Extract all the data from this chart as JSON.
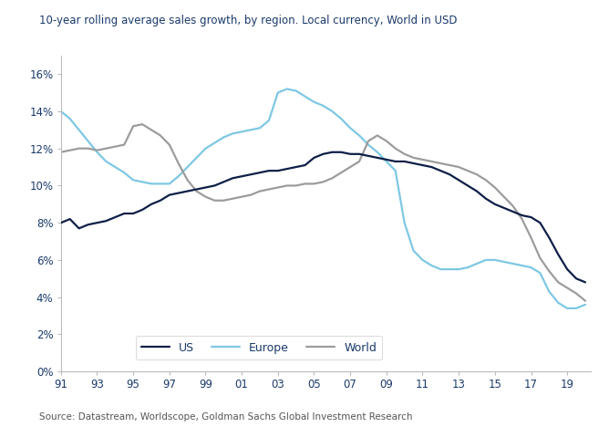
{
  "title": "10-year rolling average sales growth, by region. Local currency, World in USD",
  "source": "Source: Datastream, Worldscope, Goldman Sachs Global Investment Research",
  "x_tick_labels": [
    "91",
    "93",
    "95",
    "97",
    "99",
    "01",
    "03",
    "05",
    "07",
    "09",
    "11",
    "13",
    "15",
    "17",
    "19"
  ],
  "ylim": [
    0,
    0.17
  ],
  "yticks": [
    0.0,
    0.02,
    0.04,
    0.06,
    0.08,
    0.1,
    0.12,
    0.14,
    0.16
  ],
  "us_color": "#0d1f47",
  "europe_color": "#7ec8e3",
  "world_color": "#9c9c9c",
  "us_x": [
    1991,
    1991.5,
    1992,
    1992.5,
    1993,
    1993.5,
    1994,
    1994.5,
    1995,
    1995.5,
    1996,
    1996.5,
    1997,
    1997.5,
    1998,
    1998.5,
    1999,
    1999.5,
    2000,
    2000.5,
    2001,
    2001.5,
    2002,
    2002.5,
    2003,
    2003.5,
    2004,
    2004.5,
    2005,
    2005.5,
    2006,
    2006.5,
    2007,
    2007.5,
    2008,
    2008.5,
    2009,
    2009.5,
    2010,
    2010.5,
    2011,
    2011.5,
    2012,
    2012.5,
    2013,
    2013.5,
    2014,
    2014.5,
    2015,
    2015.5,
    2016,
    2016.5,
    2017,
    2017.5,
    2018,
    2018.5,
    2019,
    2019.5,
    2020
  ],
  "us_y": [
    0.08,
    0.082,
    0.077,
    0.079,
    0.08,
    0.081,
    0.083,
    0.085,
    0.085,
    0.087,
    0.09,
    0.092,
    0.095,
    0.096,
    0.097,
    0.098,
    0.099,
    0.1,
    0.102,
    0.104,
    0.105,
    0.106,
    0.107,
    0.108,
    0.108,
    0.109,
    0.11,
    0.111,
    0.115,
    0.117,
    0.118,
    0.118,
    0.117,
    0.117,
    0.116,
    0.115,
    0.114,
    0.113,
    0.113,
    0.112,
    0.111,
    0.11,
    0.108,
    0.106,
    0.103,
    0.1,
    0.097,
    0.093,
    0.09,
    0.088,
    0.086,
    0.084,
    0.083,
    0.08,
    0.072,
    0.063,
    0.055,
    0.05,
    0.048
  ],
  "europe_x": [
    1991,
    1991.5,
    1992,
    1992.5,
    1993,
    1993.5,
    1994,
    1994.5,
    1995,
    1995.5,
    1996,
    1996.5,
    1997,
    1997.5,
    1998,
    1998.5,
    1999,
    1999.5,
    2000,
    2000.5,
    2001,
    2001.5,
    2002,
    2002.5,
    2003,
    2003.5,
    2004,
    2004.5,
    2005,
    2005.5,
    2006,
    2006.5,
    2007,
    2007.5,
    2008,
    2008.5,
    2009,
    2009.5,
    2010,
    2010.5,
    2011,
    2011.5,
    2012,
    2012.5,
    2013,
    2013.5,
    2014,
    2014.5,
    2015,
    2015.5,
    2016,
    2016.5,
    2017,
    2017.5,
    2018,
    2018.5,
    2019,
    2019.5,
    2020
  ],
  "europe_y": [
    0.14,
    0.136,
    0.13,
    0.124,
    0.118,
    0.113,
    0.11,
    0.107,
    0.103,
    0.102,
    0.101,
    0.101,
    0.101,
    0.105,
    0.11,
    0.115,
    0.12,
    0.123,
    0.126,
    0.128,
    0.129,
    0.13,
    0.131,
    0.135,
    0.15,
    0.152,
    0.151,
    0.148,
    0.145,
    0.143,
    0.14,
    0.136,
    0.131,
    0.127,
    0.122,
    0.118,
    0.113,
    0.108,
    0.08,
    0.065,
    0.06,
    0.057,
    0.055,
    0.055,
    0.055,
    0.056,
    0.058,
    0.06,
    0.06,
    0.059,
    0.058,
    0.057,
    0.056,
    0.053,
    0.043,
    0.037,
    0.034,
    0.034,
    0.036
  ],
  "world_x": [
    1991,
    1991.5,
    1992,
    1992.5,
    1993,
    1993.5,
    1994,
    1994.5,
    1995,
    1995.5,
    1996,
    1996.5,
    1997,
    1997.5,
    1998,
    1998.5,
    1999,
    1999.5,
    2000,
    2000.5,
    2001,
    2001.5,
    2002,
    2002.5,
    2003,
    2003.5,
    2004,
    2004.5,
    2005,
    2005.5,
    2006,
    2006.5,
    2007,
    2007.5,
    2008,
    2008.5,
    2009,
    2009.5,
    2010,
    2010.5,
    2011,
    2011.5,
    2012,
    2012.5,
    2013,
    2013.5,
    2014,
    2014.5,
    2015,
    2015.5,
    2016,
    2016.5,
    2017,
    2017.5,
    2018,
    2018.5,
    2019,
    2019.5,
    2020
  ],
  "world_y": [
    0.118,
    0.119,
    0.12,
    0.12,
    0.119,
    0.12,
    0.121,
    0.122,
    0.132,
    0.133,
    0.13,
    0.127,
    0.122,
    0.112,
    0.103,
    0.097,
    0.094,
    0.092,
    0.092,
    0.093,
    0.094,
    0.095,
    0.097,
    0.098,
    0.099,
    0.1,
    0.1,
    0.101,
    0.101,
    0.102,
    0.104,
    0.107,
    0.11,
    0.113,
    0.124,
    0.127,
    0.124,
    0.12,
    0.117,
    0.115,
    0.114,
    0.113,
    0.112,
    0.111,
    0.11,
    0.108,
    0.106,
    0.103,
    0.099,
    0.094,
    0.089,
    0.082,
    0.072,
    0.061,
    0.054,
    0.048,
    0.045,
    0.042,
    0.038
  ],
  "title_color": "#1a3a6b",
  "source_color": "#555555",
  "tick_color": "#1a3a6b",
  "axis_color": "#bbbbbb",
  "line_width": 1.6,
  "background_color": "#ffffff"
}
